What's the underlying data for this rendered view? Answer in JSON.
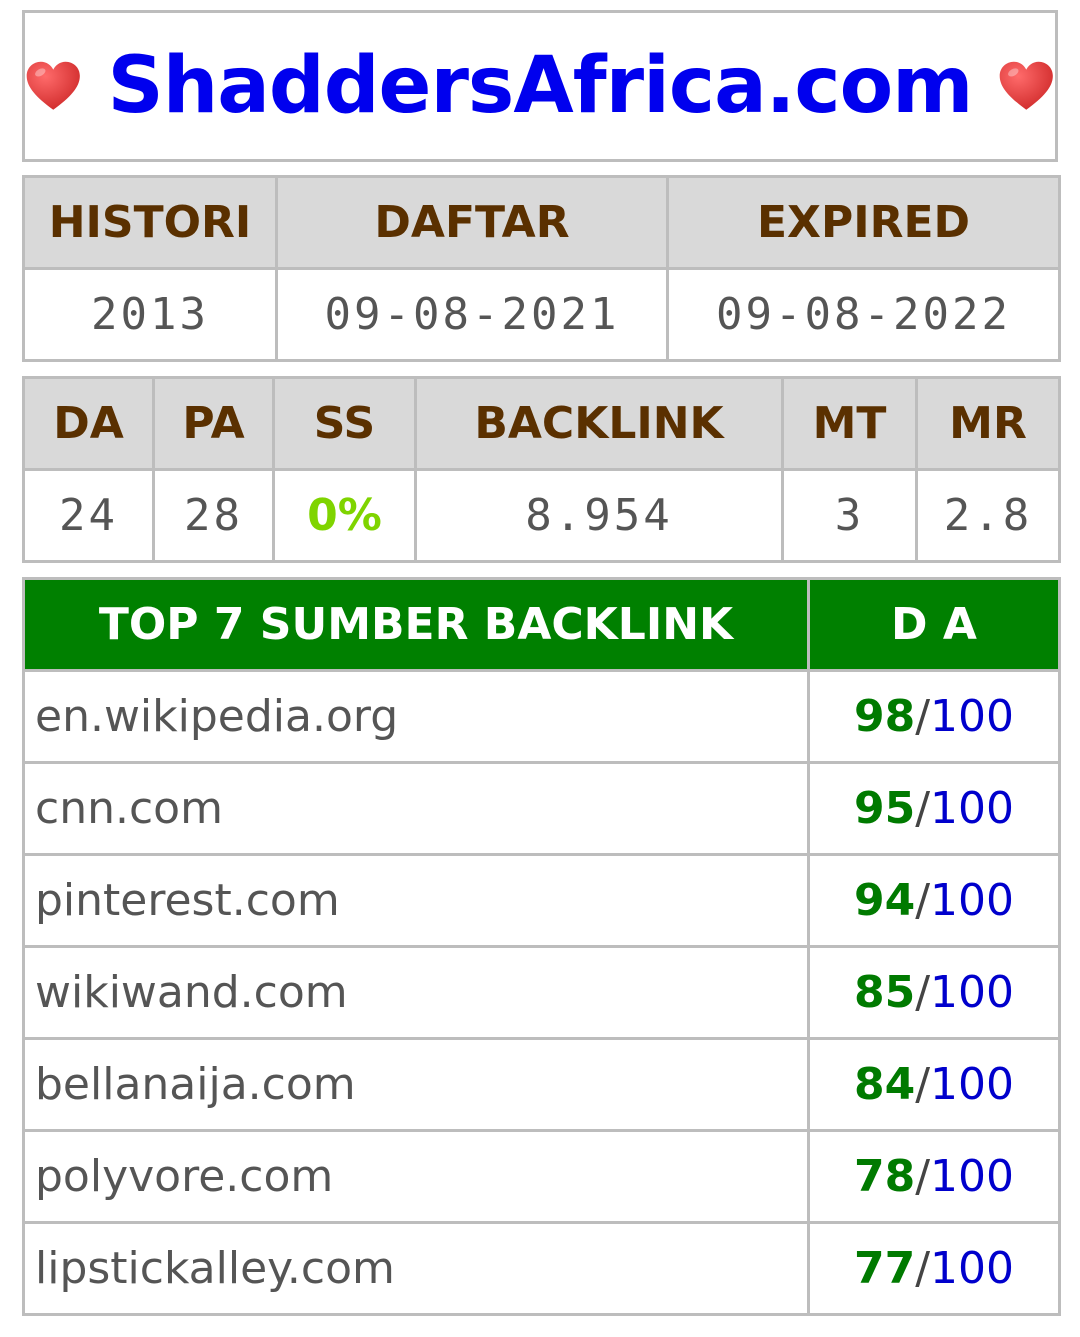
{
  "title": {
    "text": "ShaddersAfrica.com",
    "left_icon": "heart-icon",
    "right_icon": "heart-icon",
    "heart_color": "#e53935",
    "title_color": "#0000ee"
  },
  "domain_info": {
    "headers": [
      "HISTORI",
      "DAFTAR",
      "EXPIRED"
    ],
    "values": [
      "2013",
      "09-08-2021",
      "09-08-2022"
    ]
  },
  "metrics": {
    "headers": [
      "DA",
      "PA",
      "SS",
      "BACKLINK",
      "MT",
      "MR"
    ],
    "values": [
      "24",
      "28",
      "0%",
      "8.954",
      "3",
      "2.8"
    ],
    "ss_color": "#7fd400"
  },
  "backlinks": {
    "header_source": "TOP 7 SUMBER BACKLINK",
    "header_da": "D A",
    "header_color": "#008000",
    "max_label": "100",
    "slash": "/",
    "rows": [
      {
        "site": "en.wikipedia.org",
        "da": "98"
      },
      {
        "site": "cnn.com",
        "da": "95"
      },
      {
        "site": "pinterest.com",
        "da": "94"
      },
      {
        "site": "wikiwand.com",
        "da": "85"
      },
      {
        "site": "bellanaija.com",
        "da": "84"
      },
      {
        "site": "polyvore.com",
        "da": "78"
      },
      {
        "site": "lipstickalley.com",
        "da": "77"
      }
    ]
  }
}
